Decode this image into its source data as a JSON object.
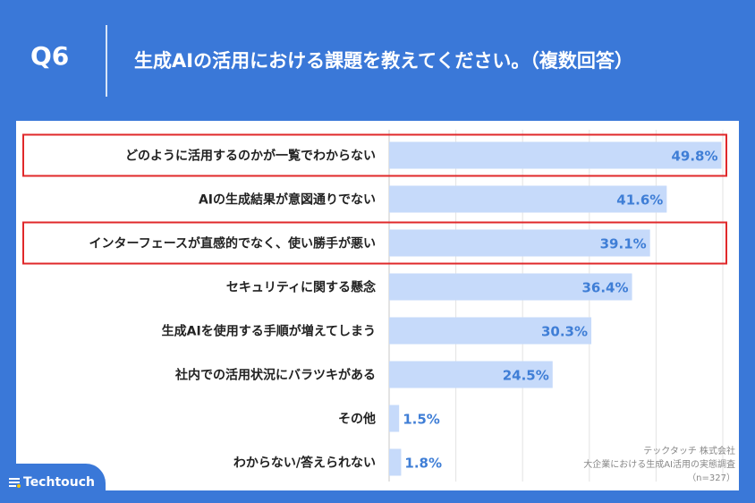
{
  "header": {
    "question_number": "Q6",
    "question_text": "生成AIの活用における課題を教えてください。（複数回答）"
  },
  "brand": {
    "logo_text": "Techtouch"
  },
  "source": {
    "company": "テックタッチ 株式会社",
    "survey": "大企業における生成AI活用の実態調査",
    "sample": "（n=327）"
  },
  "chart_data": {
    "type": "bar",
    "orientation": "horizontal",
    "categories": [
      "どのように活用するのかが一覧でわからない",
      "AIの生成結果が意図通りでない",
      "インターフェースが直感的でなく、使い勝手が悪い",
      "セキュリティに関する懸念",
      "生成AIを使用する手順が増えてしまう",
      "社内での活用状況にバラツキがある",
      "その他",
      "わからない/答えられない"
    ],
    "values": [
      49.8,
      41.6,
      39.1,
      36.4,
      30.3,
      24.5,
      1.5,
      1.8
    ],
    "value_labels": [
      "49.8%",
      "41.6%",
      "39.1%",
      "36.4%",
      "30.3%",
      "24.5%",
      "1.5%",
      "1.8%"
    ],
    "unit": "%",
    "highlighted": [
      0,
      2
    ],
    "xlim": [
      0,
      50
    ],
    "grid": true,
    "colors": {
      "bar": "#c6dafa",
      "value_text": "#3f7ed6",
      "highlight_box": "#e0282a",
      "background": "#3a78d8"
    }
  }
}
